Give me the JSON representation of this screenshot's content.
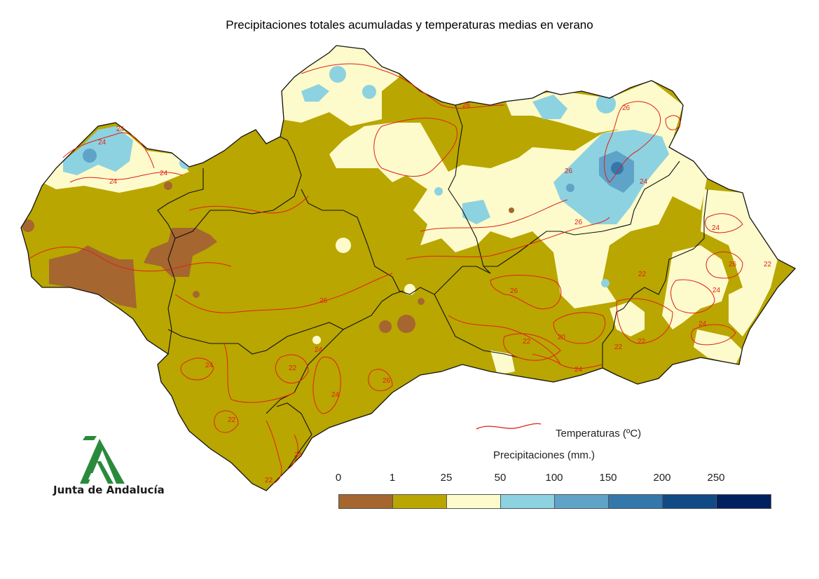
{
  "title": "Precipitaciones totales acumuladas y temperaturas medias en verano",
  "logo": {
    "text": "Junta de Andalucía",
    "icon": "junta-andalucia-logo-icon",
    "color": "#2a8a3c"
  },
  "legend": {
    "temperature_label": "Temperaturas (ºC)",
    "temperature_line_color": "#e0201a",
    "precip_title": "Precipitaciones (mm.)",
    "ticks": [
      "0",
      "1",
      "25",
      "50",
      "100",
      "150",
      "200",
      "250"
    ],
    "bins": [
      {
        "range": "0-1",
        "color": "#a5662f"
      },
      {
        "range": "1-25",
        "color": "#b9a600"
      },
      {
        "range": "25-50",
        "color": "#fdfbcb"
      },
      {
        "range": "50-100",
        "color": "#8dd2e0"
      },
      {
        "range": "100-150",
        "color": "#5fa3c9"
      },
      {
        "range": "150-200",
        "color": "#3478ab"
      },
      {
        "range": "200-250",
        "color": "#104b85"
      },
      {
        "range": ">250",
        "color": "#01205f"
      }
    ]
  },
  "contour_labels": [
    "24",
    "24",
    "24",
    "24",
    "26",
    "26",
    "26",
    "26",
    "26",
    "24",
    "24",
    "26",
    "22",
    "24",
    "26",
    "24",
    "22",
    "24",
    "24",
    "26",
    "22",
    "20",
    "24",
    "24",
    "22",
    "22",
    "22",
    "24",
    "22",
    "22"
  ]
}
